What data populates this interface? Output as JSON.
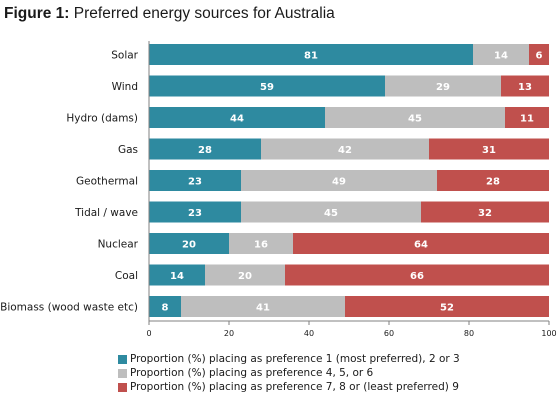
{
  "figure": {
    "label_prefix": "Figure 1:",
    "label_text": "Preferred energy sources for Australia"
  },
  "chart_data": {
    "type": "bar",
    "orientation": "horizontal",
    "stacked": true,
    "title": "Preferred energy sources for Australia",
    "categories": [
      "Solar",
      "Wind",
      "Hydro (dams)",
      "Gas",
      "Geothermal",
      "Tidal / wave",
      "Nuclear",
      "Coal",
      "Biomass (wood waste etc)"
    ],
    "series": [
      {
        "name": "Proportion (%) placing as preference 1 (most preferred), 2 or 3",
        "color": "#2e8aa0",
        "values": [
          81,
          59,
          44,
          28,
          23,
          23,
          20,
          14,
          8
        ]
      },
      {
        "name": "Proportion (%) placing as preference 4, 5, or 6",
        "color": "#bebebe",
        "values": [
          14,
          29,
          45,
          42,
          49,
          45,
          16,
          20,
          41
        ]
      },
      {
        "name": "Proportion (%) placing as preference 7, 8 or (least preferred) 9",
        "color": "#c0504d",
        "values": [
          6,
          13,
          11,
          31,
          28,
          32,
          64,
          66,
          52
        ]
      }
    ],
    "xlim": [
      0,
      100
    ],
    "xticks": [
      0,
      20,
      40,
      60,
      80,
      100
    ],
    "grid": false,
    "legend_position": "bottom"
  }
}
